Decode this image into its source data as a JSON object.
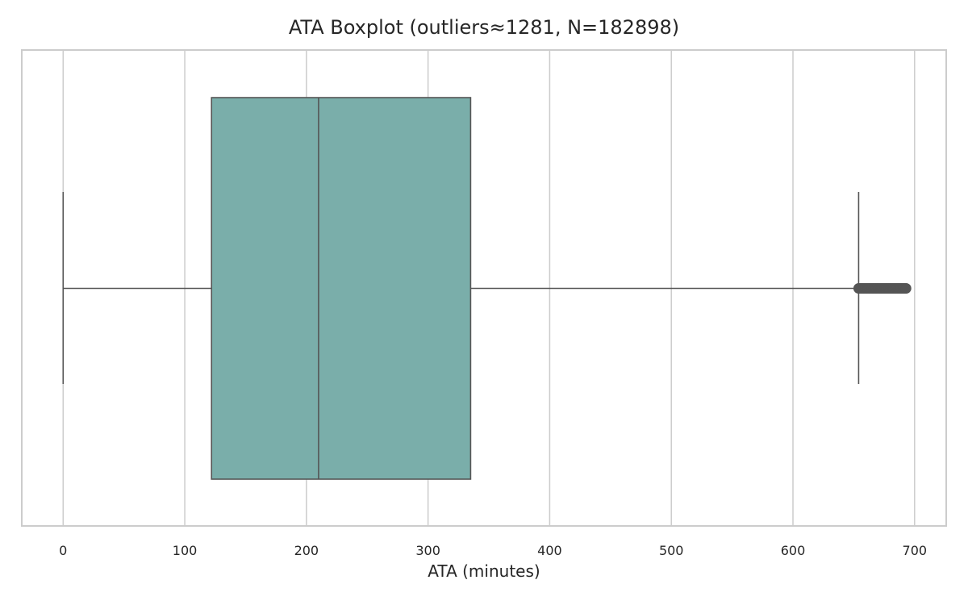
{
  "chart_data": {
    "type": "box",
    "orientation": "horizontal",
    "title": "ATA Boxplot (outliers≈1281, N=182898)",
    "xlabel": "ATA (minutes)",
    "ylabel": "",
    "xlim": [
      -34,
      726
    ],
    "xticks": [
      0,
      100,
      200,
      300,
      400,
      500,
      600,
      700
    ],
    "xtick_labels": [
      "0",
      "100",
      "200",
      "300",
      "400",
      "500",
      "600",
      "700"
    ],
    "grid": "vertical",
    "box": {
      "whisker_low": 0,
      "q1": 122,
      "median": 210,
      "q3": 335,
      "whisker_high": 654,
      "outlier_range": [
        654,
        693
      ],
      "outlier_count": 1281,
      "n": 182898
    },
    "colors": {
      "box_fill": "#7aaeaa",
      "line": "#555555",
      "grid": "#cccccc",
      "frame": "#cccccc",
      "outliers": "#555555"
    }
  }
}
